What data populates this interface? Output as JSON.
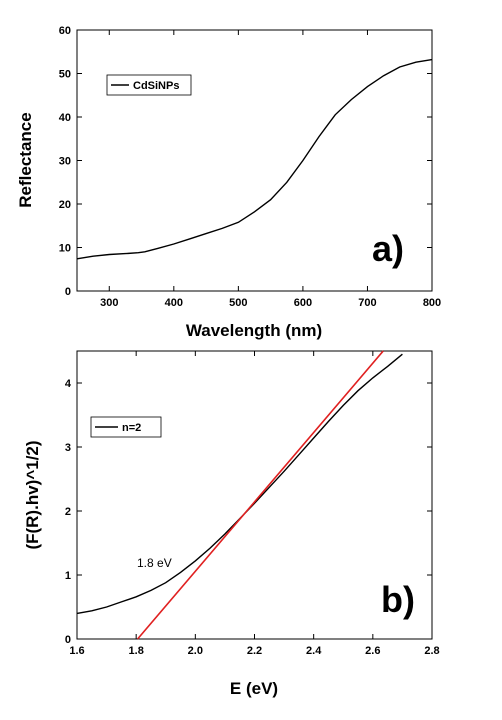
{
  "chart_data": [
    {
      "type": "line",
      "panel_label": "a)",
      "xlabel": "Wavelength (nm)",
      "ylabel": "Reflectance",
      "xlim": [
        250,
        800
      ],
      "ylim": [
        0,
        60
      ],
      "x_ticks": [
        "300",
        "400",
        "500",
        "600",
        "700",
        "800"
      ],
      "y_ticks": [
        "0",
        "10",
        "20",
        "30",
        "40",
        "50",
        "60"
      ],
      "legend_position": "top-left",
      "series": [
        {
          "name": "CdSiNPs",
          "color": "#000000",
          "x": [
            250,
            275,
            300,
            325,
            345,
            355,
            375,
            400,
            425,
            450,
            475,
            500,
            525,
            550,
            575,
            600,
            625,
            650,
            675,
            700,
            725,
            750,
            775,
            800
          ],
          "y": [
            7.4,
            8.0,
            8.4,
            8.6,
            8.8,
            9.0,
            9.8,
            10.8,
            12.0,
            13.2,
            14.4,
            15.8,
            18.2,
            21.0,
            25.0,
            30.0,
            35.5,
            40.5,
            44.0,
            47.0,
            49.5,
            51.5,
            52.6,
            53.2
          ]
        }
      ]
    },
    {
      "type": "line",
      "panel_label": "b)",
      "xlabel": "E (eV)",
      "ylabel": "(F(R).hv)^1/2)",
      "xlim": [
        1.6,
        2.8
      ],
      "ylim": [
        0,
        4.5
      ],
      "x_ticks": [
        "1.6",
        "1.8",
        "2.0",
        "2.2",
        "2.4",
        "2.6",
        "2.8"
      ],
      "y_ticks": [
        "0",
        "1",
        "2",
        "3",
        "4"
      ],
      "legend_position": "upper-left",
      "annotation": "1.8 eV",
      "series": [
        {
          "name": "n=2",
          "color": "#000000",
          "x": [
            1.6,
            1.65,
            1.7,
            1.75,
            1.8,
            1.85,
            1.9,
            1.95,
            2.0,
            2.05,
            2.1,
            2.15,
            2.2,
            2.25,
            2.3,
            2.35,
            2.4,
            2.45,
            2.5,
            2.55,
            2.6,
            2.65,
            2.7
          ],
          "y": [
            0.4,
            0.44,
            0.5,
            0.58,
            0.66,
            0.76,
            0.88,
            1.04,
            1.22,
            1.42,
            1.64,
            1.88,
            2.12,
            2.37,
            2.62,
            2.88,
            3.14,
            3.4,
            3.65,
            3.88,
            4.08,
            4.26,
            4.45
          ]
        },
        {
          "name": "",
          "color": "#e02020",
          "x": [
            1.805,
            2.635
          ],
          "y": [
            0,
            4.5
          ]
        }
      ]
    }
  ]
}
